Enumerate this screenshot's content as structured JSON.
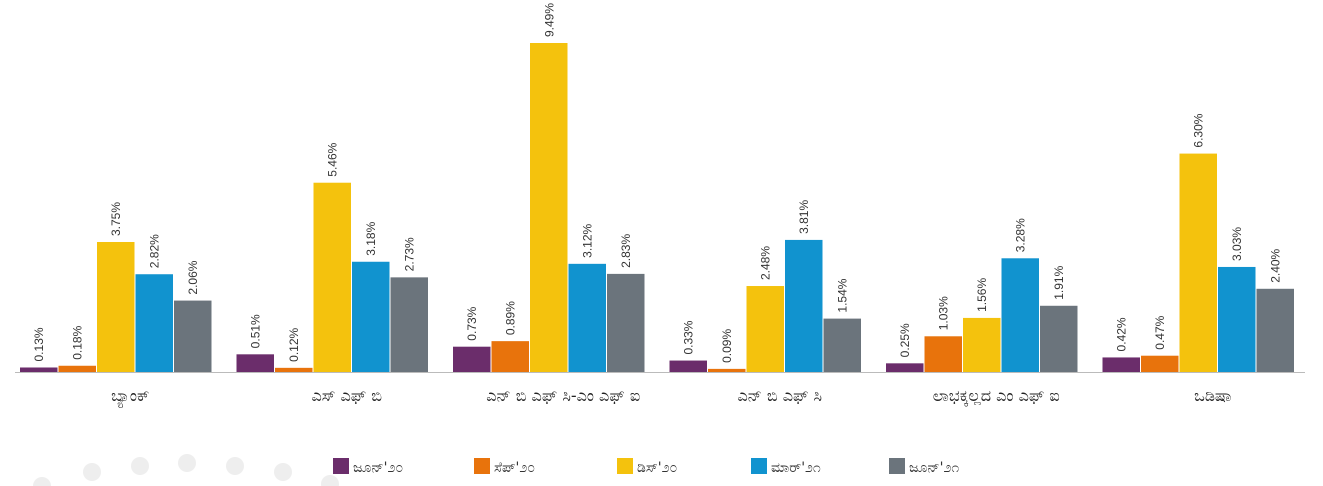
{
  "chart_data": {
    "type": "bar",
    "categories": [
      "ಬ್ಯಾಂಕ್",
      "ಎಸ್ ಎಫ್ ಬಿ",
      "ಎನ್ ಬಿ ಎಫ್ ಸಿ-ಎಂ ಎಫ್ ಐ",
      "ಎನ್ ಬಿ ಎಫ್ ಸಿ",
      "ಲಾಭಕ್ಕಲ್ಲದ ಎಂ ಎಫ್ ಐ",
      "ಒಡಿಷಾ"
    ],
    "series": [
      {
        "name": "ಜೂನ್'೨೦",
        "color": "#6b2d6b",
        "values": [
          0.13,
          0.51,
          0.73,
          0.33,
          0.25,
          0.42
        ],
        "value_labels": [
          "0.13%",
          "0.51%",
          "0.73%",
          "0.33%",
          "0.25%",
          "0.42%"
        ]
      },
      {
        "name": "ಸೆಪ್'೨೦",
        "color": "#e8730c",
        "values": [
          0.18,
          0.12,
          0.89,
          0.09,
          1.03,
          0.47
        ],
        "value_labels": [
          "0.18%",
          "0.12%",
          "0.89%",
          "0.09%",
          "1.03%",
          "0.47%"
        ]
      },
      {
        "name": "ಡಿಸ್'೨೦",
        "color": "#f4c20d",
        "values": [
          3.75,
          5.46,
          9.49,
          2.48,
          1.56,
          6.3
        ],
        "value_labels": [
          "3.75%",
          "5.46%",
          "9.49%",
          "2.48%",
          "1.56%",
          "6.30%"
        ]
      },
      {
        "name": "ಮಾರ್'೨೧",
        "color": "#1193cf",
        "values": [
          2.82,
          3.18,
          3.12,
          3.81,
          3.28,
          3.03
        ],
        "value_labels": [
          "2.82%",
          "3.18%",
          "3.12%",
          "3.81%",
          "3.28%",
          "3.03%"
        ]
      },
      {
        "name": "ಜೂನ್'೨೧",
        "color": "#6b747c",
        "values": [
          2.06,
          2.73,
          2.83,
          1.54,
          1.91,
          2.4
        ],
        "value_labels": [
          "2.06%",
          "2.73%",
          "2.83%",
          "1.54%",
          "1.91%",
          "2.40%"
        ]
      }
    ]
  }
}
